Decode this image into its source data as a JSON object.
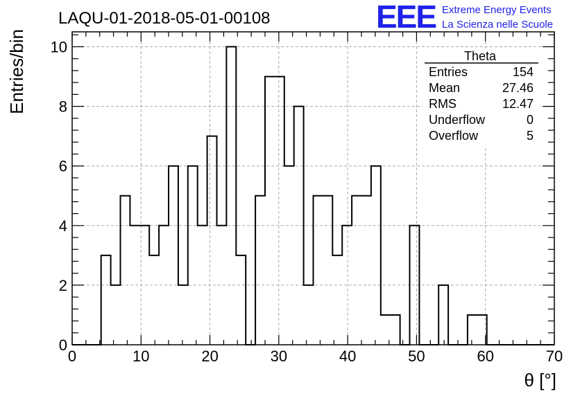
{
  "header": {
    "title": "LAQU-01-2018-05-01-00108",
    "logo_letters": "EEE",
    "logo_line1": "Extreme Energy Events",
    "logo_line2": "La Scienza nelle Scuole"
  },
  "stats_box": {
    "title": "Theta",
    "rows": [
      {
        "label": "Entries",
        "value": "154"
      },
      {
        "label": "Mean",
        "value": "27.46"
      },
      {
        "label": "RMS",
        "value": "12.47"
      },
      {
        "label": "Underflow",
        "value": "0"
      },
      {
        "label": "Overflow",
        "value": "5"
      }
    ]
  },
  "chart_data": {
    "type": "bar",
    "style": "step-histogram",
    "title": "LAQU-01-2018-05-01-00108",
    "xlabel": "θ [°]",
    "ylabel": "Entries/bin",
    "xlim": [
      0,
      70
    ],
    "ylim": [
      0,
      10.5
    ],
    "grid": true,
    "x_ticks": [
      0,
      10,
      20,
      30,
      40,
      50,
      60,
      70
    ],
    "y_ticks": [
      0,
      2,
      4,
      6,
      8,
      10
    ],
    "bin_width": 1.4,
    "bin_edges": [
      0,
      1.4,
      2.8,
      4.2,
      5.6,
      7.0,
      8.4,
      9.8,
      11.2,
      12.6,
      14.0,
      15.4,
      16.8,
      18.2,
      19.6,
      21.0,
      22.4,
      23.8,
      25.2,
      26.6,
      28.0,
      29.4,
      30.8,
      32.2,
      33.6,
      35.0,
      36.4,
      37.8,
      39.2,
      40.6,
      42.0,
      43.4,
      44.8,
      46.2,
      47.6,
      49.0,
      50.4,
      51.8,
      53.2,
      54.6,
      56.0,
      57.4,
      58.8,
      60.2,
      61.6,
      63.0,
      64.4,
      65.8,
      67.2,
      68.6,
      70.0
    ],
    "values": [
      0,
      0,
      0,
      3,
      2,
      5,
      4,
      4,
      3,
      4,
      6,
      2,
      6,
      4,
      7,
      4,
      10,
      3,
      0,
      5,
      9,
      9,
      6,
      8,
      2,
      5,
      5,
      3,
      4,
      5,
      5,
      6,
      1,
      1,
      0,
      4,
      0,
      0,
      2,
      0,
      0,
      1,
      1,
      0,
      0,
      0,
      0,
      0,
      0,
      0
    ],
    "legend": "top-right"
  }
}
